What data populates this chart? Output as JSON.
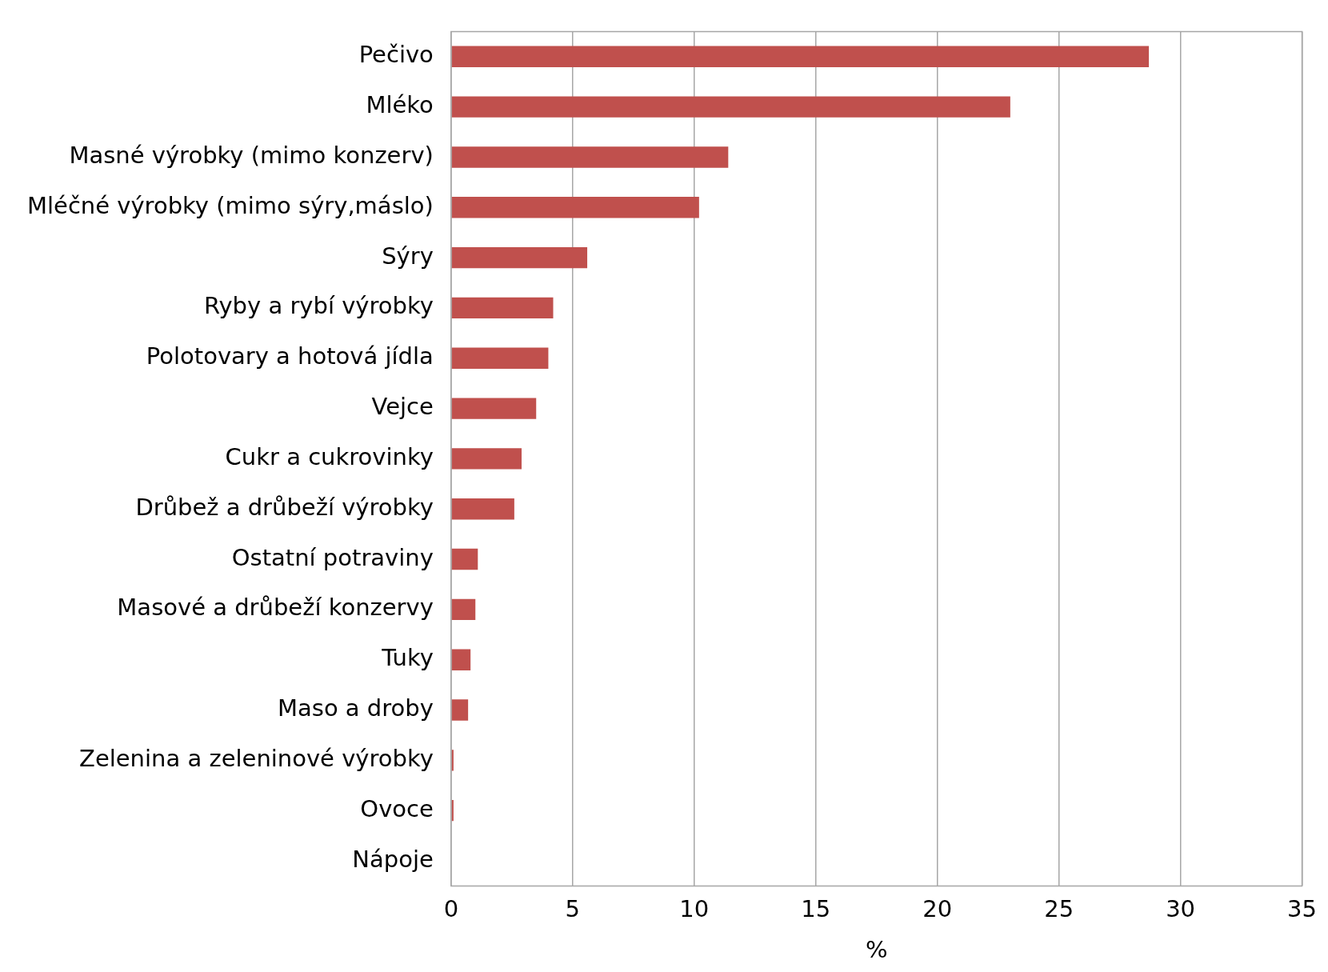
{
  "chart_data": {
    "type": "bar",
    "orientation": "horizontal",
    "xlabel": "%",
    "categories": [
      "Pečivo",
      "Mléko",
      "Masné výrobky (mimo konzerv)",
      "Mléčné výrobky (mimo sýry,máslo)",
      "Sýry",
      "Ryby a rybí výrobky",
      "Polotovary a hotová jídla",
      "Vejce",
      "Cukr a cukrovinky",
      "Drůbež a drůbeží výrobky",
      "Ostatní potraviny",
      "Masové a drůbeží konzervy",
      "Tuky",
      "Maso a droby",
      "Zelenina a zeleninové výrobky",
      "Ovoce",
      "Nápoje"
    ],
    "values": [
      28.7,
      23.0,
      11.4,
      10.2,
      5.6,
      4.2,
      4.0,
      3.5,
      2.9,
      2.6,
      1.1,
      1.0,
      0.8,
      0.7,
      0.1,
      0.1,
      0
    ],
    "color": "#c0504d",
    "xlim": [
      0,
      35
    ],
    "xticks": [
      0,
      5,
      10,
      15,
      20,
      25,
      30,
      35
    ],
    "grid": "x",
    "legend": false
  }
}
